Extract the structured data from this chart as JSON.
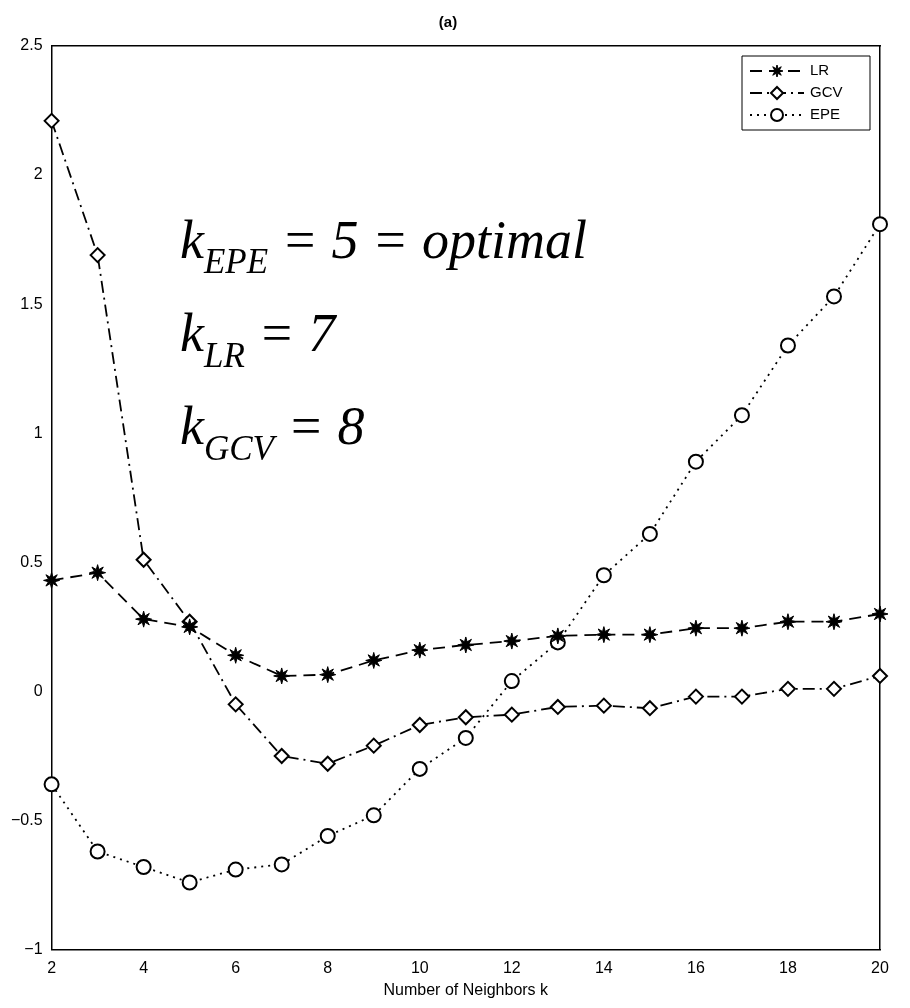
{
  "chart_data": {
    "type": "line",
    "title": "(a)",
    "xlabel": "Number of Neighbors k",
    "x": [
      2,
      3,
      4,
      5,
      6,
      7,
      8,
      9,
      10,
      11,
      12,
      13,
      14,
      15,
      16,
      17,
      18,
      19,
      20
    ],
    "series": [
      {
        "name": "LR",
        "color": "#000000",
        "marker": "star",
        "line_style": "dashed",
        "values": [
          0.43,
          0.46,
          0.28,
          0.25,
          0.14,
          0.06,
          0.065,
          0.12,
          0.16,
          0.18,
          0.195,
          0.215,
          0.22,
          0.22,
          0.245,
          0.245,
          0.27,
          0.27,
          0.3
        ]
      },
      {
        "name": "GCV",
        "color": "#000000",
        "marker": "diamond",
        "line_style": "dashdot",
        "values": [
          2.21,
          1.69,
          0.51,
          0.27,
          -0.05,
          -0.25,
          -0.28,
          -0.21,
          -0.13,
          -0.1,
          -0.09,
          -0.06,
          -0.055,
          -0.065,
          -0.02,
          -0.02,
          0.01,
          0.01,
          0.06
        ]
      },
      {
        "name": "EPE",
        "color": "#000000",
        "marker": "circle",
        "line_style": "dotted",
        "values": [
          -0.36,
          -0.62,
          -0.68,
          -0.74,
          -0.69,
          -0.67,
          -0.56,
          -0.48,
          -0.3,
          -0.18,
          0.04,
          0.19,
          0.45,
          0.61,
          0.89,
          1.07,
          1.34,
          1.53,
          1.81
        ]
      }
    ],
    "xlim": [
      2,
      20
    ],
    "xticks": [
      2,
      4,
      6,
      8,
      10,
      12,
      14,
      16,
      18,
      20
    ],
    "ylim": [
      -1,
      2.5
    ],
    "yticks": [
      -1,
      -0.5,
      0,
      0.5,
      1,
      1.5,
      2,
      2.5
    ],
    "grid": false,
    "legend": "top right",
    "annotations": [
      "k$_{EPE}$ = 5 = optimal",
      "k$_{LR}$ = 7",
      "k$_{GCV}$ = 8"
    ]
  }
}
